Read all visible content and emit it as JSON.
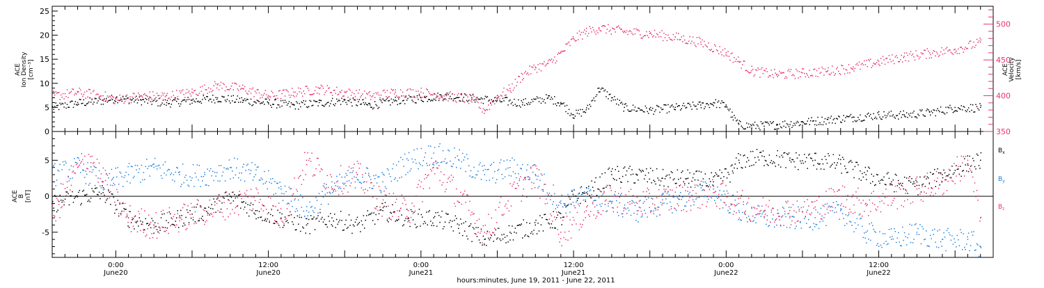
{
  "colors": {
    "black": "#000000",
    "pink": "#e8336a",
    "blue": "#1a7fe0",
    "axis": "#000000"
  },
  "xaxis": {
    "label": "hours:minutes, June 19, 2011 - June 22, 2011",
    "range_hours": [
      -5,
      69
    ],
    "ticks": [
      {
        "t": 0,
        "time": "0:00",
        "date": "June20"
      },
      {
        "t": 12,
        "time": "12:00",
        "date": "June20"
      },
      {
        "t": 24,
        "time": "0:00",
        "date": "June21"
      },
      {
        "t": 36,
        "time": "12:00",
        "date": "June21"
      },
      {
        "t": 48,
        "time": "0:00",
        "date": "June22"
      },
      {
        "t": 60,
        "time": "12:00",
        "date": "June22"
      }
    ]
  },
  "panel_top": {
    "left_label": [
      "ACE",
      "Ion Density",
      "[cm⁻³]"
    ],
    "right_label": [
      "ACE",
      "Velocity",
      "[km/s]"
    ],
    "left_ticks": [
      "0",
      "5",
      "10",
      "15",
      "20",
      "25"
    ],
    "right_ticks": [
      "350",
      "400",
      "450",
      "500"
    ]
  },
  "panel_bottom": {
    "left_label": [
      "ACE",
      "B",
      "[nT]"
    ],
    "left_ticks": [
      "-5",
      "0",
      "5"
    ],
    "legend": [
      {
        "base": "B",
        "sub": "x",
        "color": "#000000"
      },
      {
        "base": "B",
        "sub": "y",
        "color": "#1a7fe0"
      },
      {
        "base": "B",
        "sub": "z",
        "color": "#e8336a"
      }
    ]
  },
  "chart_data": [
    {
      "type": "scatter",
      "title": "",
      "xlabel": "hours:minutes, June 19, 2011 - June 22, 2011",
      "x_units": "hours from 0:00 June20",
      "xlim": [
        -5,
        69
      ],
      "ylim_left": [
        0,
        26
      ],
      "ylim_right": [
        350,
        525
      ],
      "series": [
        {
          "name": "Ion Density",
          "axis": "left",
          "color": "#000000",
          "x": [
            -5,
            -3,
            -1,
            0,
            2,
            4,
            6,
            8,
            10,
            12,
            14,
            16,
            18,
            20,
            22,
            24,
            26,
            28,
            30,
            32,
            34,
            35,
            36,
            37,
            38,
            39,
            40,
            42,
            44,
            46,
            47,
            48,
            48.5,
            49,
            50,
            52,
            54,
            56,
            58,
            60,
            62,
            64,
            66,
            68
          ],
          "y": [
            5,
            6,
            6.5,
            7,
            6.5,
            6,
            6.5,
            7,
            6.5,
            6,
            5.5,
            6,
            6.5,
            5.5,
            6.5,
            7,
            7.5,
            7,
            6.5,
            6,
            7,
            6,
            3.5,
            4.5,
            9,
            7,
            5,
            4.5,
            5,
            5.5,
            6,
            5.5,
            3,
            1.5,
            1.2,
            1.5,
            2,
            2.5,
            3,
            3.5,
            3.5,
            4,
            5,
            5
          ]
        },
        {
          "name": "Velocity",
          "axis": "right",
          "color": "#e8336a",
          "x": [
            -5,
            -3,
            -1,
            0,
            2,
            4,
            6,
            8,
            10,
            12,
            14,
            16,
            18,
            20,
            22,
            24,
            26,
            28,
            29,
            30,
            31,
            32,
            33,
            34,
            35,
            36,
            37,
            38,
            40,
            42,
            44,
            46,
            48,
            49,
            50,
            52,
            54,
            56,
            58,
            60,
            62,
            64,
            66,
            68
          ],
          "y": [
            400,
            405,
            400,
            395,
            400,
            400,
            405,
            415,
            410,
            400,
            405,
            410,
            405,
            400,
            405,
            405,
            400,
            395,
            380,
            400,
            410,
            430,
            440,
            445,
            460,
            480,
            490,
            495,
            490,
            487,
            482,
            475,
            460,
            448,
            435,
            430,
            432,
            435,
            440,
            448,
            455,
            460,
            465,
            475
          ]
        }
      ]
    },
    {
      "type": "scatter",
      "title": "",
      "xlabel": "hours:minutes, June 19, 2011 - June 22, 2011",
      "x_units": "hours from 0:00 June20",
      "xlim": [
        -5,
        69
      ],
      "ylim": [
        -8.5,
        9
      ],
      "series": [
        {
          "name": "Bx",
          "color": "#000000",
          "x": [
            -5,
            -3,
            -1,
            1,
            3,
            5,
            7,
            9,
            11,
            13,
            15,
            17,
            19,
            21,
            23,
            25,
            27,
            29,
            31,
            33,
            35,
            36,
            37,
            39,
            41,
            43,
            45,
            47,
            48.5,
            49,
            51,
            53,
            55,
            57,
            59,
            61,
            63,
            65,
            67,
            68
          ],
          "y": [
            -1,
            0,
            0.5,
            -3,
            -4,
            -3,
            -2,
            0,
            -2,
            -3,
            -4,
            -3,
            -4,
            -2,
            -3,
            -3,
            -4,
            -6,
            -5,
            -4,
            -3,
            0,
            0.5,
            3,
            3,
            2.5,
            2.5,
            2,
            3.5,
            5,
            5.5,
            5,
            5,
            4.5,
            3,
            2,
            1.5,
            3,
            4.5,
            5
          ]
        },
        {
          "name": "By",
          "color": "#1a7fe0",
          "x": [
            -5,
            -3,
            -1,
            1,
            3,
            5,
            7,
            9,
            11,
            13,
            15,
            17,
            19,
            21,
            23,
            25,
            27,
            29,
            31,
            33,
            35,
            37,
            39,
            41,
            43,
            45,
            47,
            49,
            51,
            53,
            55,
            57,
            59,
            61,
            63,
            65,
            67,
            68
          ],
          "y": [
            3,
            4,
            2,
            3,
            4,
            3,
            3,
            4,
            3,
            1,
            -2,
            1,
            3,
            2,
            5,
            6,
            5,
            3,
            4,
            3,
            -1,
            0,
            -1,
            -2,
            -1,
            0,
            1,
            -2,
            -3,
            -3,
            -3,
            -2,
            -5,
            -6,
            -5,
            -6,
            -6,
            -7
          ]
        },
        {
          "name": "Bz",
          "color": "#e8336a",
          "x": [
            -5,
            -3,
            -2,
            -1,
            1,
            3,
            5,
            7,
            9,
            11,
            13,
            15,
            17,
            19,
            21,
            23,
            25,
            27,
            29,
            31,
            33,
            35,
            37,
            39,
            41,
            43,
            45,
            47,
            49,
            51,
            53,
            55,
            57,
            59,
            61,
            63,
            65,
            67,
            68
          ],
          "y": [
            -3,
            4,
            5.5,
            2,
            -3,
            -4,
            -3,
            -2,
            -1,
            0,
            -3,
            5,
            2,
            3,
            -1,
            -2,
            4,
            0,
            -5,
            0,
            3,
            -5,
            -2,
            0,
            -1,
            -0.5,
            0,
            0.5,
            -1,
            -2,
            -2,
            -1.5,
            0,
            -1,
            0,
            1,
            2,
            5,
            -3
          ]
        }
      ]
    }
  ]
}
